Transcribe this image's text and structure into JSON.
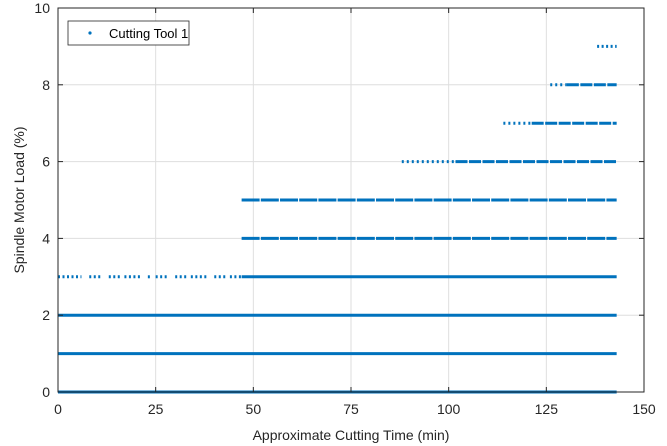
{
  "chart_data": {
    "type": "scatter",
    "xlabel": "Approximate Cutting Time (min)",
    "ylabel": "Spindle Motor Load (%)",
    "xlim": [
      0,
      150
    ],
    "ylim": [
      0,
      10
    ],
    "x_ticks": [
      0,
      25,
      50,
      75,
      100,
      125,
      150
    ],
    "y_ticks": [
      0,
      2,
      4,
      6,
      8,
      10
    ],
    "grid": true,
    "legend_position": "top-left",
    "marker_color": "#0072BD",
    "series": [
      {
        "name": "Cutting Tool 1",
        "levels": [
          {
            "y": 0,
            "x_ranges": [
              [
                0,
                143
              ]
            ],
            "density": "continuous"
          },
          {
            "y": 1,
            "x_ranges": [
              [
                0,
                143
              ]
            ],
            "density": "continuous"
          },
          {
            "y": 2,
            "x_ranges": [
              [
                0,
                143
              ]
            ],
            "density": "continuous"
          },
          {
            "y": 3,
            "x_ranges": [
              [
                0,
                6
              ],
              [
                8,
                11
              ],
              [
                13,
                16
              ],
              [
                17,
                21
              ],
              [
                23,
                24
              ],
              [
                25,
                28
              ],
              [
                30,
                33
              ],
              [
                34,
                38
              ],
              [
                40,
                43
              ],
              [
                44,
                47
              ],
              [
                47,
                143
              ]
            ],
            "density": "mixed"
          },
          {
            "y": 4,
            "x_ranges": [
              [
                47,
                143
              ]
            ],
            "density": "dense"
          },
          {
            "y": 5,
            "x_ranges": [
              [
                47,
                143
              ]
            ],
            "density": "dense"
          },
          {
            "y": 6,
            "x_ranges": [
              [
                88,
                143
              ]
            ],
            "density": "sparse-then-dense"
          },
          {
            "y": 7,
            "x_ranges": [
              [
                114,
                143
              ]
            ],
            "density": "sparse-then-dense"
          },
          {
            "y": 8,
            "x_ranges": [
              [
                126,
                143
              ]
            ],
            "density": "sparse-then-dense"
          },
          {
            "y": 9,
            "x_ranges": [
              [
                138,
                143
              ]
            ],
            "density": "sparse"
          }
        ]
      }
    ]
  }
}
